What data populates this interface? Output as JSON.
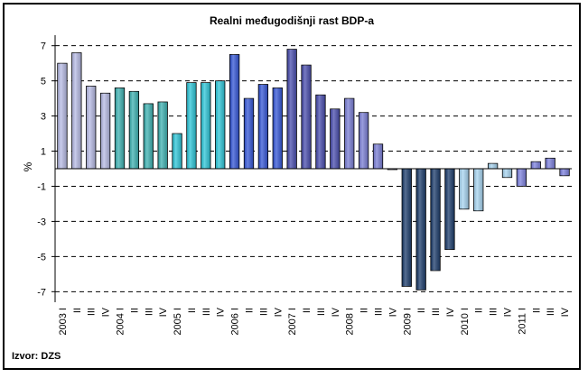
{
  "chart_data": {
    "type": "bar",
    "title": "Realni međugodišnji rast BDP-a",
    "ylabel": "%",
    "xlabel": "",
    "ylim": [
      -7.6,
      7.6
    ],
    "yticks": [
      7,
      5,
      3,
      1,
      -1,
      -3,
      -5,
      -7
    ],
    "grid": "horizontal-dashed",
    "years": [
      "2003",
      "2004",
      "2005",
      "2006",
      "2007",
      "2008",
      "2009",
      "2010",
      "2011"
    ],
    "quarters": [
      "I",
      "II",
      "III",
      "IV"
    ],
    "categories": [
      "2003 I",
      "2003 II",
      "2003 III",
      "2003 IV",
      "2004 I",
      "2004 II",
      "2004 III",
      "2004 IV",
      "2005 I",
      "2005 II",
      "2005 III",
      "2005 IV",
      "2006 I",
      "2006 II",
      "2006 III",
      "2006 IV",
      "2007 I",
      "2007 II",
      "2007 III",
      "2007 IV",
      "2008 I",
      "2008 II",
      "2008 III",
      "2008 IV",
      "2009 I",
      "2009 II",
      "2009 III",
      "2009 IV",
      "2010 I",
      "2010 II",
      "2010 III",
      "2010 IV",
      "2011 I",
      "2011 II",
      "2011 III",
      "2011 IV"
    ],
    "values": [
      6.0,
      6.6,
      4.7,
      4.3,
      4.6,
      4.4,
      3.7,
      3.8,
      2.0,
      4.9,
      4.9,
      5.0,
      6.5,
      4.0,
      4.8,
      4.6,
      6.8,
      5.9,
      4.2,
      3.4,
      4.0,
      3.2,
      1.4,
      0.0,
      -6.7,
      -6.9,
      -5.8,
      -4.6,
      -2.3,
      -2.4,
      0.3,
      -0.5,
      -1.0,
      0.4,
      0.6,
      -0.4
    ],
    "year_colors": [
      "#b8bce6",
      "#3fb3b3",
      "#2fc7d9",
      "#3658d8",
      "#4b4fb0",
      "#7b7fd6",
      "#1f3f6e",
      "#a9d6f2",
      "#7f83e0"
    ]
  },
  "source": "Izvor: DZS"
}
